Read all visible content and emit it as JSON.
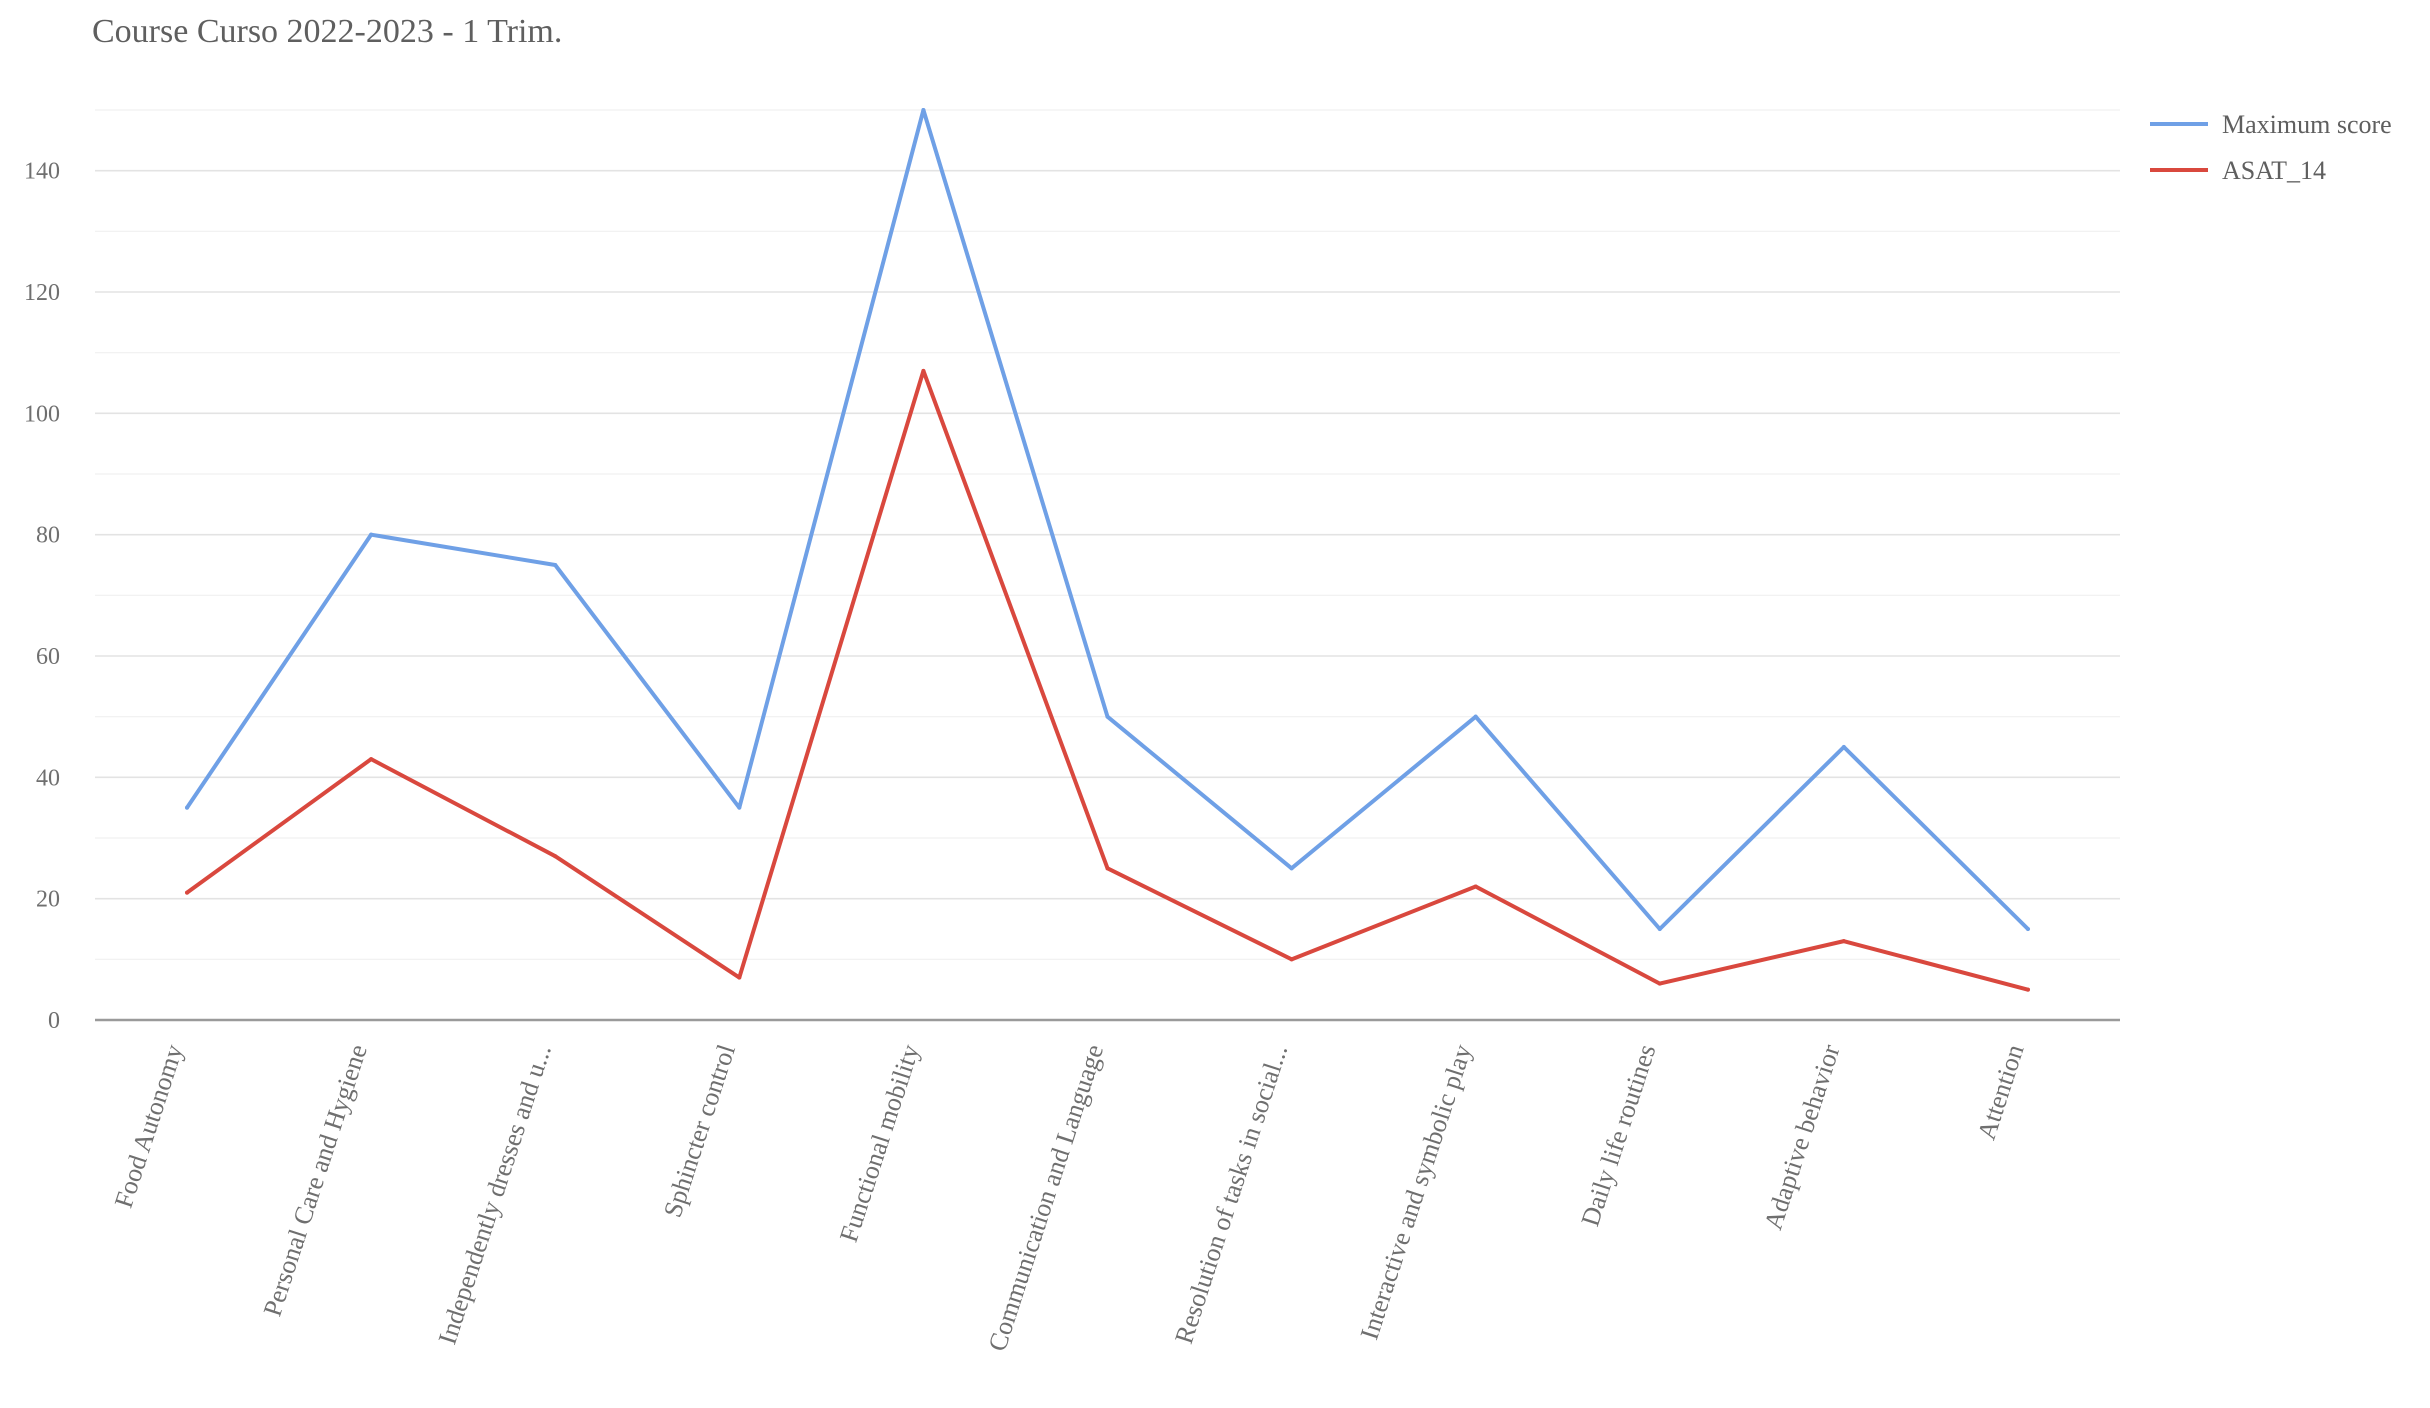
{
  "chart_data": {
    "type": "line",
    "title": "Course Curso 2022-2023 - 1 Trim.",
    "xlabel": "",
    "ylabel": "",
    "ylim": [
      0,
      150
    ],
    "yticks": [
      0,
      20,
      40,
      60,
      80,
      100,
      120,
      140
    ],
    "ytick_labels": [
      "0",
      "20",
      "40",
      "60",
      "80",
      "100",
      "120",
      "140"
    ],
    "grid": true,
    "legend_position": "top-right",
    "categories": [
      "Food Autonomy",
      "Personal Care and Hygiene",
      "Independently dresses and u...",
      "Sphincter control",
      "Functional mobility",
      "Communication and Language",
      "Resolution of tasks in social...",
      "Interactive and symbolic play",
      "Daily life routines",
      "Adaptive behavior",
      "Attention"
    ],
    "series": [
      {
        "name": "Maximum score",
        "color": "#6fa0e6",
        "values": [
          35,
          80,
          75,
          35,
          150,
          50,
          25,
          50,
          15,
          45,
          15
        ]
      },
      {
        "name": "ASAT_14",
        "color": "#d9483e",
        "values": [
          21,
          43,
          27,
          7,
          107,
          25,
          10,
          22,
          6,
          13,
          5
        ]
      }
    ]
  }
}
